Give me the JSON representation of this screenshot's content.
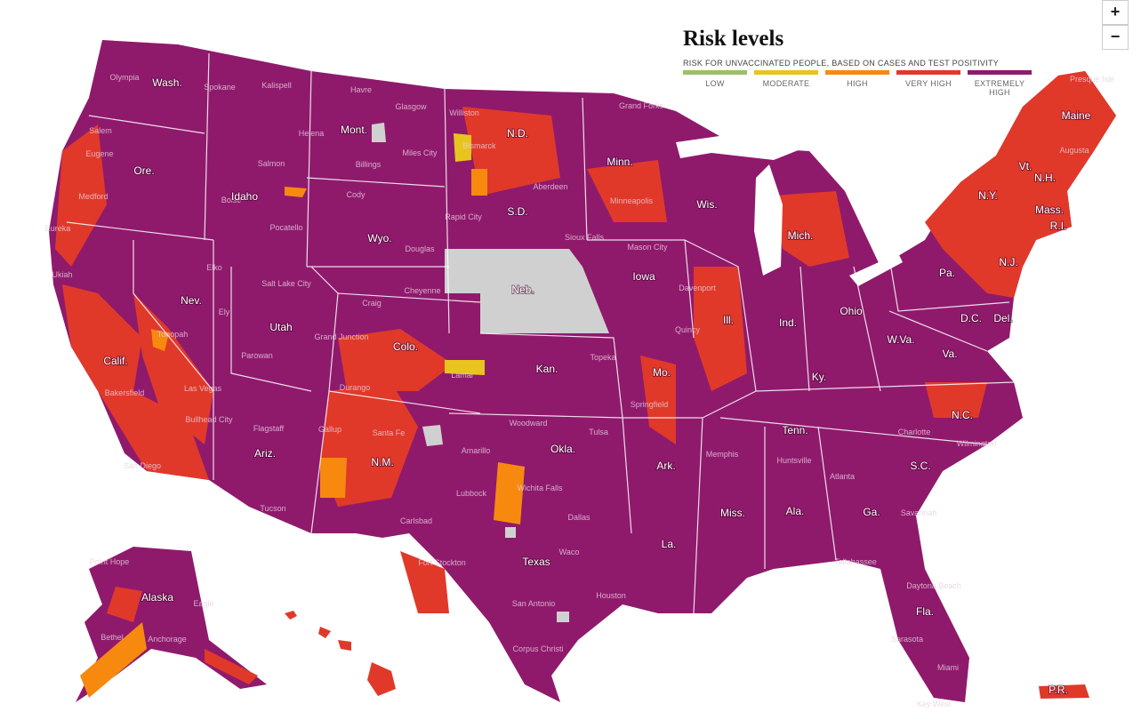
{
  "header": {
    "title": "Risk levels",
    "subtitle": "RISK FOR UNVACCINATED PEOPLE, BASED ON CASES AND TEST POSITIVITY"
  },
  "legend": [
    {
      "label": "LOW",
      "color": "#9cc066"
    },
    {
      "label": "MODERATE",
      "color": "#e8c41f"
    },
    {
      "label": "HIGH",
      "color": "#f7890f"
    },
    {
      "label": "VERY HIGH",
      "color": "#e0392a"
    },
    {
      "label": "EXTREMELY HIGH",
      "color": "#8e1a6e"
    }
  ],
  "zoom": [
    "+",
    "−"
  ],
  "state_labels": [
    "Wash.",
    "Ore.",
    "Calif.",
    "Nev.",
    "Idaho",
    "Mont.",
    "Wyo.",
    "Utah",
    "Ariz.",
    "Colo.",
    "N.M.",
    "N.D.",
    "S.D.",
    "Neb.",
    "Kan.",
    "Okla.",
    "Texas",
    "Minn.",
    "Iowa",
    "Mo.",
    "Ark.",
    "La.",
    "Wis.",
    "Ill.",
    "Mich.",
    "Ind.",
    "Ohio",
    "Ky.",
    "Tenn.",
    "Miss.",
    "Ala.",
    "Ga.",
    "Fla.",
    "S.C.",
    "N.C.",
    "Va.",
    "W.Va.",
    "Pa.",
    "N.Y.",
    "Vt.",
    "N.H.",
    "Maine",
    "Mass.",
    "R.I.",
    "N.J.",
    "Del.",
    "D.C.",
    "Alaska",
    "P.R."
  ],
  "city_labels": [
    "Olympia",
    "Spokane",
    "Kalispell",
    "Havre",
    "Glasgow",
    "Williston",
    "Bismarck",
    "Grand Forks",
    "Helena",
    "Salem",
    "Eugene",
    "Medford",
    "Eureka",
    "Boise",
    "Salmon",
    "Billings",
    "Miles City",
    "Cody",
    "Pocatello",
    "Aberdeen",
    "Rapid City",
    "Sioux Falls",
    "Minneapolis",
    "Elko",
    "Salt Lake City",
    "Douglas",
    "Cheyenne",
    "Ukiah",
    "Ely",
    "Tonopah",
    "Craig",
    "Grand Junction",
    "Parowan",
    "Durango",
    "Lamar",
    "Las Vegas",
    "Bakersfield",
    "Bullhead City",
    "Flagstaff",
    "Gallup",
    "Santa Fe",
    "Amarillo",
    "Lubbock",
    "Carlsbad",
    "Tucson",
    "San Diego",
    "Fort Stockton",
    "Dallas",
    "Waco",
    "Houston",
    "San Antonio",
    "Corpus Christi",
    "Wichita Falls",
    "Woodward",
    "Tulsa",
    "Topeka",
    "Springfield",
    "Davenport",
    "Mason City",
    "Quincy",
    "Memphis",
    "Huntsville",
    "Atlanta",
    "Tallahassee",
    "Daytona Beach",
    "Sarasota",
    "Miami",
    "Key West",
    "Charlotte",
    "Wilmington",
    "Savannah",
    "Presque Isle",
    "Augusta",
    "Point Hope",
    "Eagle",
    "Bethel",
    "Anchorage"
  ]
}
